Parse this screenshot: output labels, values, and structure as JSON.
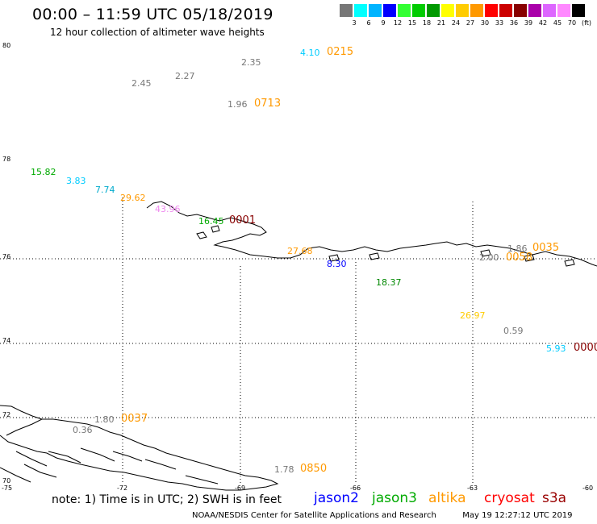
{
  "title": "00:00 – 11:59 UTC 05/18/2019",
  "subtitle": "12 hour collection of altimeter wave heights",
  "legend": {
    "unit": "(ft)",
    "bins": [
      {
        "label": "3",
        "color": "#777777"
      },
      {
        "label": "6",
        "color": "#00ffff"
      },
      {
        "label": "9",
        "color": "#00b4ff"
      },
      {
        "label": "12",
        "color": "#0000ff"
      },
      {
        "label": "15",
        "color": "#33ff33"
      },
      {
        "label": "18",
        "color": "#00cc00"
      },
      {
        "label": "21",
        "color": "#009900"
      },
      {
        "label": "24",
        "color": "#ffff00"
      },
      {
        "label": "27",
        "color": "#ffcc00"
      },
      {
        "label": "30",
        "color": "#ff9900"
      },
      {
        "label": "33",
        "color": "#ff0000"
      },
      {
        "label": "36",
        "color": "#cc0000"
      },
      {
        "label": "39",
        "color": "#880000"
      },
      {
        "label": "42",
        "color": "#aa00aa"
      },
      {
        "label": "45",
        "color": "#dd66ff"
      },
      {
        "label": "70",
        "color": "#ff88ff"
      },
      {
        "label": "",
        "color": "#000000"
      }
    ]
  },
  "lat_labels": [
    "80",
    "78",
    "76",
    "74",
    "72",
    "70"
  ],
  "lon_labels": [
    "-75",
    "-72",
    "-69",
    "-66",
    "-63",
    "-60"
  ],
  "observations": [
    {
      "value": "4.10",
      "color": "#00ccff"
    },
    {
      "value": "2.35",
      "color": "#777777"
    },
    {
      "value": "2.27",
      "color": "#777777"
    },
    {
      "value": "2.45",
      "color": "#777777"
    },
    {
      "value": "1.96",
      "color": "#777777"
    },
    {
      "value": "15.82",
      "color": "#00aa00"
    },
    {
      "value": "3.83",
      "color": "#00ccff"
    },
    {
      "value": "7.74",
      "color": "#00aacc"
    },
    {
      "value": "29.62",
      "color": "#ff9900"
    },
    {
      "value": "43.96",
      "color": "#ee88ee"
    },
    {
      "value": "16.45",
      "color": "#00aa00"
    },
    {
      "value": "27.68",
      "color": "#ff9900"
    },
    {
      "value": "8.30",
      "color": "#0000ff"
    },
    {
      "value": "18.37",
      "color": "#008800"
    },
    {
      "value": "1.86",
      "color": "#777777"
    },
    {
      "value": "2.00",
      "color": "#777777"
    },
    {
      "value": "26.97",
      "color": "#ffcc00"
    },
    {
      "value": "0.59",
      "color": "#777777"
    },
    {
      "value": "5.93",
      "color": "#00ccff"
    },
    {
      "value": "1.80",
      "color": "#777777"
    },
    {
      "value": "0.36",
      "color": "#777777"
    },
    {
      "value": "1.78",
      "color": "#777777"
    }
  ],
  "pass_times": [
    {
      "time": "0215",
      "color": "#ff9900"
    },
    {
      "time": "0713",
      "color": "#ff9900"
    },
    {
      "time": "0001",
      "color": "#880000"
    },
    {
      "time": "0035",
      "color": "#ff9900"
    },
    {
      "time": "0058",
      "color": "#ff9900"
    },
    {
      "time": "0000",
      "color": "#880000"
    },
    {
      "time": "0037",
      "color": "#ff9900"
    },
    {
      "time": "0850",
      "color": "#ff9900"
    }
  ],
  "note": "note:  1) Time is in UTC;  2) SWH is in feet",
  "satellites": [
    {
      "name": "jason2",
      "color": "#0000ff"
    },
    {
      "name": "jason3",
      "color": "#00aa00"
    },
    {
      "name": "altika",
      "color": "#ff9900"
    },
    {
      "name": "cryosat",
      "color": "#ff0000"
    },
    {
      "name": "s3a",
      "color": "#990000"
    }
  ],
  "credit": "NOAA/NESDIS Center for Satellite Applications and Research",
  "timestamp": "May 19 12:27:12 UTC 2019"
}
